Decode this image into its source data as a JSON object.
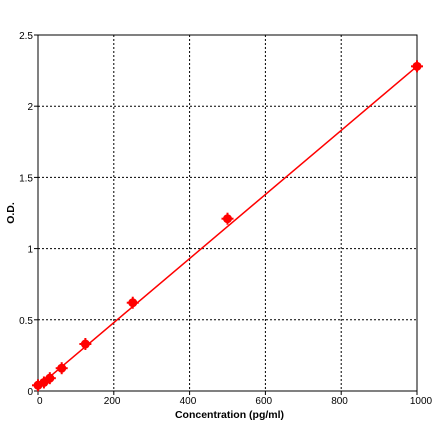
{
  "chart_data": {
    "type": "scatter",
    "title": "",
    "xlabel": "Concentration (pg/ml)",
    "ylabel": "O.D.",
    "xlim": [
      0,
      1000
    ],
    "ylim": [
      0,
      2.5
    ],
    "x_ticks": [
      0,
      200,
      400,
      600,
      800,
      1000
    ],
    "y_ticks": [
      0,
      0.5,
      1,
      1.5,
      2,
      2.5
    ],
    "x_tick_labels": [
      "0",
      "200",
      "400",
      "600",
      "800",
      "1000"
    ],
    "y_tick_labels": [
      "0",
      "0.5",
      "1",
      "1.5",
      "2",
      "2.5"
    ],
    "grid": true,
    "grid_style": "dotted",
    "series": [
      {
        "color": "#ff0000",
        "points": [
          {
            "x": 0,
            "y": 0.04
          },
          {
            "x": 15.6,
            "y": 0.06
          },
          {
            "x": 31.2,
            "y": 0.09
          },
          {
            "x": 62.5,
            "y": 0.16
          },
          {
            "x": 125,
            "y": 0.33
          },
          {
            "x": 250,
            "y": 0.62
          },
          {
            "x": 500,
            "y": 1.21
          },
          {
            "x": 1000,
            "y": 2.28
          }
        ],
        "fit_line": {
          "x": [
            0,
            1000
          ],
          "y": [
            0.03,
            2.28
          ]
        }
      }
    ]
  }
}
